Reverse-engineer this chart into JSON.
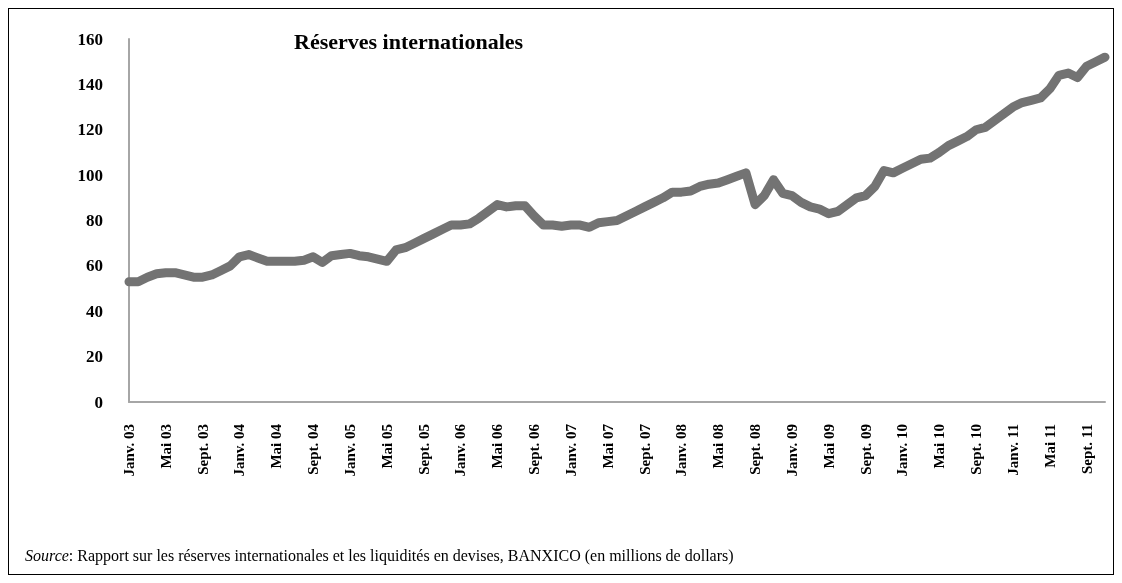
{
  "chart_data": {
    "type": "line",
    "title": "Réserves internationales",
    "categories": [
      "Janv. 03",
      null,
      null,
      null,
      "Mai 03",
      null,
      null,
      null,
      "Sept. 03",
      null,
      null,
      null,
      "Janv. 04",
      null,
      null,
      null,
      "Mai 04",
      null,
      null,
      null,
      "Sept. 04",
      null,
      null,
      null,
      "Janv. 05",
      null,
      null,
      null,
      "Mai 05",
      null,
      null,
      null,
      "Sept. 05",
      null,
      null,
      null,
      "Janv. 06",
      null,
      null,
      null,
      "Mai 06",
      null,
      null,
      null,
      "Sept. 06",
      null,
      null,
      null,
      "Janv. 07",
      null,
      null,
      null,
      "Mai 07",
      null,
      null,
      null,
      "Sept. 07",
      null,
      null,
      null,
      "Janv. 08",
      null,
      null,
      null,
      "Mai 08",
      null,
      null,
      null,
      "Sept. 08",
      null,
      null,
      null,
      "Janv. 09",
      null,
      null,
      null,
      "Mai 09",
      null,
      null,
      null,
      "Sept. 09",
      null,
      null,
      null,
      "Janv. 10",
      null,
      null,
      null,
      "Mai 10",
      null,
      null,
      null,
      "Sept. 10",
      null,
      null,
      null,
      "Janv. 11",
      null,
      null,
      null,
      "Mai 11",
      null,
      null,
      null,
      "Sept. 11",
      null,
      null
    ],
    "series": [
      {
        "color": "#737373",
        "values": [
          53,
          53,
          55,
          56.5,
          57,
          57,
          56,
          55,
          55,
          56,
          58,
          60,
          64,
          65,
          63.5,
          62,
          62,
          62,
          62,
          62.5,
          64,
          61.5,
          64.5,
          65,
          65.5,
          64.5,
          64,
          63,
          62,
          67,
          68,
          70,
          72,
          74,
          76,
          78,
          78,
          78.5,
          81,
          84,
          87,
          86,
          86.5,
          86.5,
          82,
          78,
          78,
          77.5,
          78,
          78,
          77,
          79,
          79.5,
          80,
          82,
          84,
          86,
          88,
          90,
          92.5,
          92.5,
          93,
          95,
          96,
          96.5,
          98,
          99.5,
          101,
          87,
          91,
          98,
          92,
          91,
          88,
          86,
          85,
          83,
          84,
          87,
          90,
          91,
          95,
          102,
          101,
          103,
          105,
          107,
          107.5,
          110,
          113,
          115,
          117,
          120,
          121,
          124,
          127,
          130,
          132,
          133,
          134,
          138,
          144,
          145,
          143,
          148,
          150,
          152
        ]
      }
    ],
    "ylim": [
      0,
      160
    ],
    "yticks": [
      0,
      20,
      40,
      60,
      80,
      100,
      120,
      140,
      160
    ],
    "grid": false,
    "line_style": "solid",
    "annotations": [
      "Source: Rapport sur les réserves internationales et les liquidités en devises, BANXICO (en millions de dollars)"
    ]
  }
}
